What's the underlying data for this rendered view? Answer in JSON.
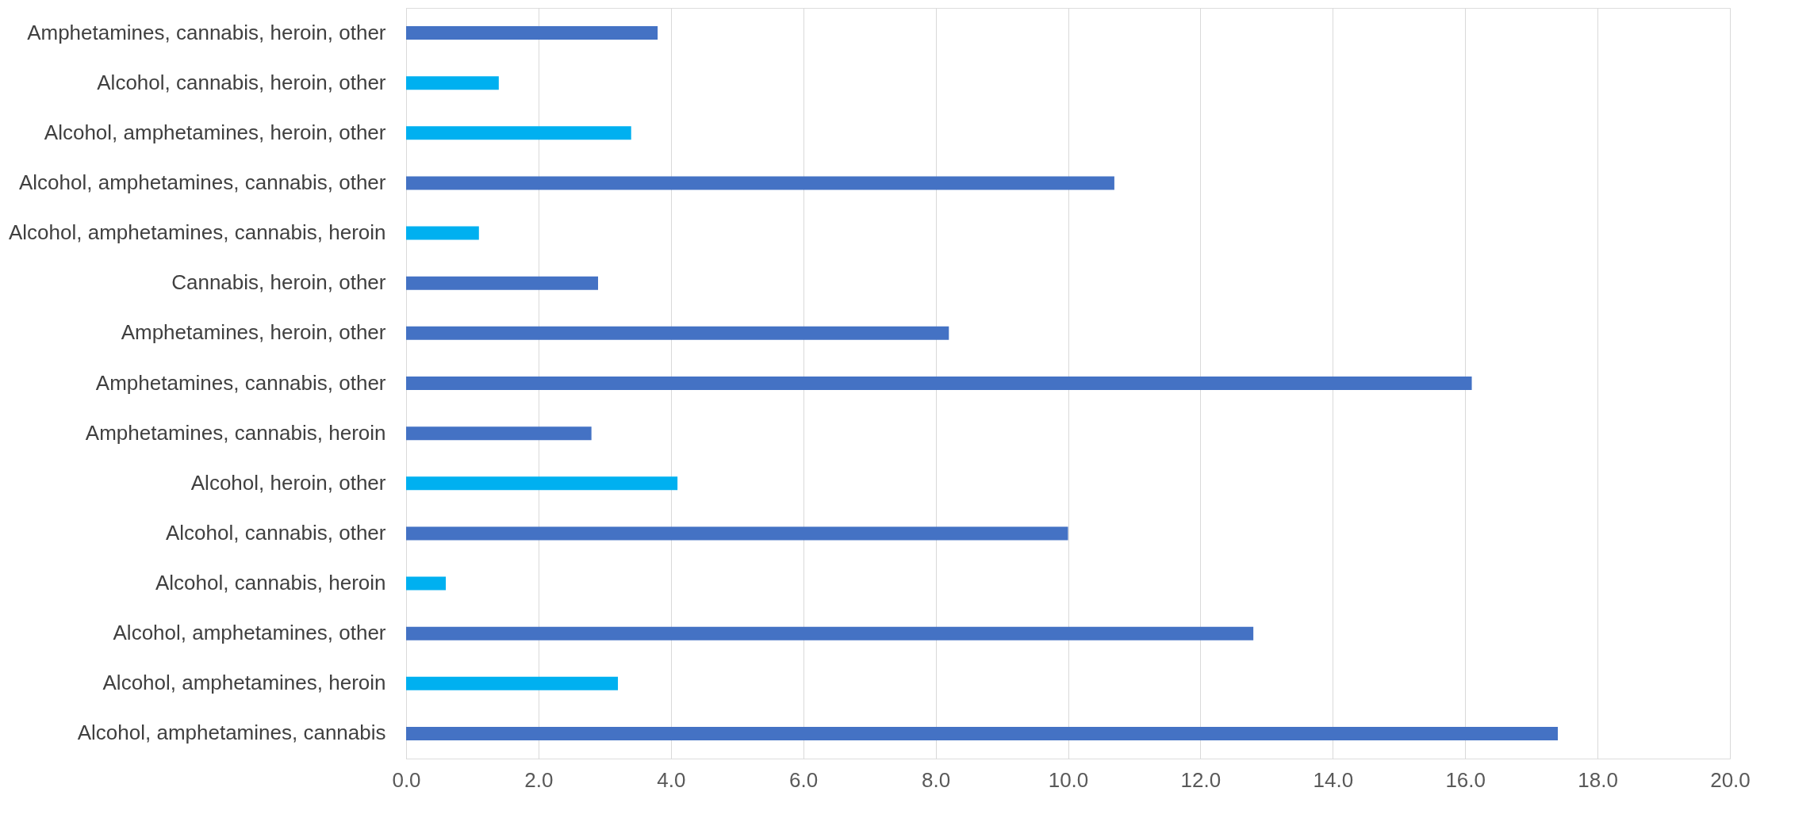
{
  "chart_data": {
    "type": "bar",
    "orientation": "horizontal",
    "categories": [
      "Amphetamines, cannabis, heroin, other",
      "Alcohol, cannabis, heroin, other",
      "Alcohol, amphetamines, heroin, other",
      "Alcohol, amphetamines, cannabis, other",
      "Alcohol, amphetamines, cannabis, heroin",
      "Cannabis, heroin, other",
      "Amphetamines, heroin, other",
      "Amphetamines, cannabis, other",
      "Amphetamines, cannabis, heroin",
      "Alcohol, heroin, other",
      "Alcohol, cannabis, other",
      "Alcohol, cannabis, heroin",
      "Alcohol, amphetamines, other",
      "Alcohol, amphetamines, heroin",
      "Alcohol, amphetamines, cannabis"
    ],
    "values": [
      3.8,
      1.4,
      3.4,
      10.7,
      1.1,
      2.9,
      8.2,
      16.1,
      2.8,
      4.1,
      10.0,
      0.6,
      12.8,
      3.2,
      17.4
    ],
    "colors": [
      "#4472c4",
      "#00b0f0",
      "#00b0f0",
      "#4472c4",
      "#00b0f0",
      "#4472c4",
      "#4472c4",
      "#4472c4",
      "#4472c4",
      "#00b0f0",
      "#4472c4",
      "#00b0f0",
      "#4472c4",
      "#00b0f0",
      "#4472c4"
    ],
    "xlim": [
      0,
      20
    ],
    "xticks": [
      {
        "value": 0,
        "label": "0.0"
      },
      {
        "value": 2,
        "label": "2.0"
      },
      {
        "value": 4,
        "label": "4.0"
      },
      {
        "value": 6,
        "label": "6.0"
      },
      {
        "value": 8,
        "label": "8.0"
      },
      {
        "value": 10,
        "label": "10.0"
      },
      {
        "value": 12,
        "label": "12.0"
      },
      {
        "value": 14,
        "label": "14.0"
      },
      {
        "value": 16,
        "label": "16.0"
      },
      {
        "value": 18,
        "label": "18.0"
      },
      {
        "value": 20,
        "label": "20.0"
      }
    ],
    "grid": "x"
  }
}
